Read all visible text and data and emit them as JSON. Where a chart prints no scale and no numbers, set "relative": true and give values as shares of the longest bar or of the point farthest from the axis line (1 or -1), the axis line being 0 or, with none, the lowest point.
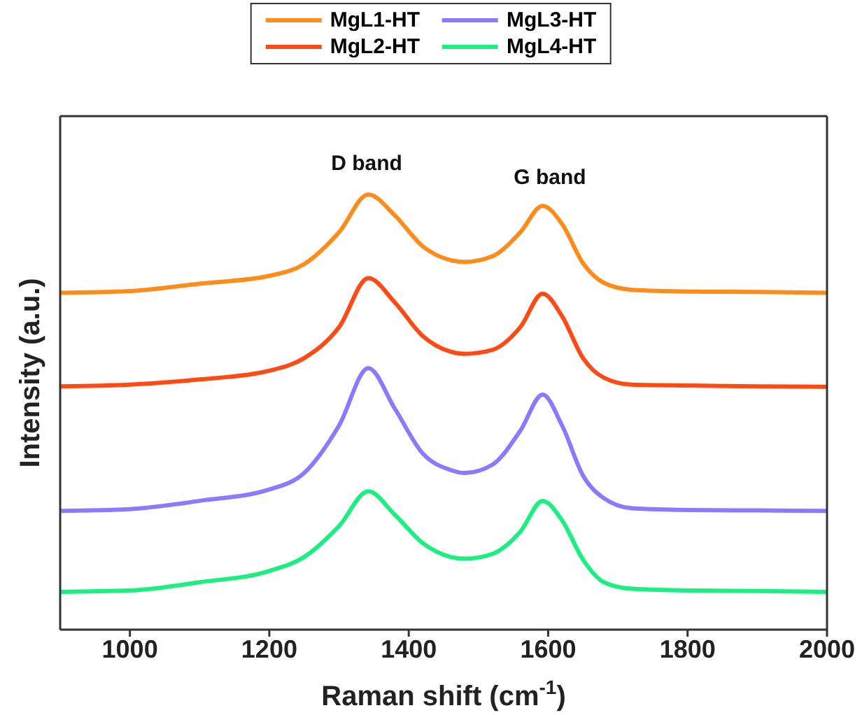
{
  "chart_data": {
    "type": "line",
    "relative": true,
    "xlabel": "Raman shift (cm$^{-1}$)",
    "ylabel": "Intensity (a.u.)",
    "xlim": [
      900,
      2000
    ],
    "xticks": [
      1000,
      1200,
      1400,
      1600,
      1800,
      2000
    ],
    "legend": "top",
    "grid": false,
    "line_style": "solid",
    "x": [
      900,
      1000,
      1100,
      1200,
      1250,
      1300,
      1342,
      1380,
      1420,
      1460,
      1480,
      1520,
      1560,
      1592,
      1620,
      1650,
      1680,
      1720,
      1800,
      1900,
      2000
    ],
    "series": [
      {
        "name": "MgL1-HT",
        "color": "#ff8c1a",
        "values": [
          0.774,
          0.778,
          0.795,
          0.813,
          0.84,
          0.913,
          1.0,
          0.952,
          0.881,
          0.849,
          0.845,
          0.858,
          0.913,
          0.974,
          0.932,
          0.842,
          0.797,
          0.781,
          0.777,
          0.776,
          0.774
        ]
      },
      {
        "name": "MgL2-HT",
        "color": "#ff4a14",
        "values": [
          0.559,
          0.563,
          0.575,
          0.595,
          0.624,
          0.695,
          0.808,
          0.752,
          0.675,
          0.639,
          0.634,
          0.643,
          0.695,
          0.772,
          0.72,
          0.624,
          0.579,
          0.563,
          0.561,
          0.559,
          0.558
        ]
      },
      {
        "name": "MgL3-HT",
        "color": "#8a7aff",
        "values": [
          0.273,
          0.277,
          0.296,
          0.322,
          0.36,
          0.469,
          0.601,
          0.508,
          0.405,
          0.367,
          0.36,
          0.379,
          0.457,
          0.54,
          0.469,
          0.354,
          0.302,
          0.279,
          0.275,
          0.274,
          0.273
        ]
      },
      {
        "name": "MgL4-HT",
        "color": "#1aef80",
        "values": [
          0.087,
          0.09,
          0.109,
          0.135,
          0.167,
          0.238,
          0.318,
          0.264,
          0.199,
          0.167,
          0.163,
          0.174,
          0.225,
          0.296,
          0.251,
          0.161,
          0.109,
          0.094,
          0.09,
          0.089,
          0.087
        ]
      }
    ],
    "annotations": [
      "D band",
      "G band"
    ]
  }
}
